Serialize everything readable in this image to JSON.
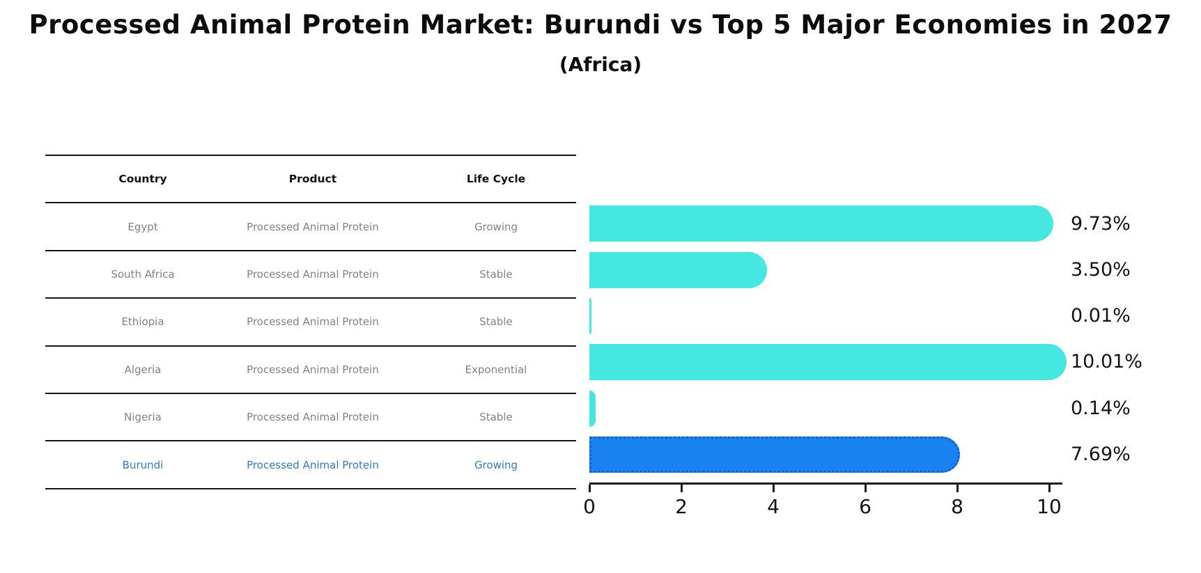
{
  "title": "Processed Animal Protein Market: Burundi vs Top 5 Major Economies in 2027",
  "subtitle": "(Africa)",
  "table": {
    "headers": [
      "Country",
      "Product",
      "Life Cycle"
    ],
    "rows": [
      {
        "country": "Egypt",
        "product": "Processed Animal Protein",
        "life_cycle": "Growing",
        "value_label": "9.73%",
        "highlight": false
      },
      {
        "country": "South Africa",
        "product": "Processed Animal Protein",
        "life_cycle": "Stable",
        "value_label": "3.50%",
        "highlight": false
      },
      {
        "country": "Ethiopia",
        "product": "Processed Animal Protein",
        "life_cycle": "Stable",
        "value_label": "0.01%",
        "highlight": false
      },
      {
        "country": "Algeria",
        "product": "Processed Animal Protein",
        "life_cycle": "Exponential",
        "value_label": "10.01%",
        "highlight": false
      },
      {
        "country": "Nigeria",
        "product": "Processed Animal Protein",
        "life_cycle": "Stable",
        "value_label": "0.14%",
        "highlight": false
      },
      {
        "country": "Burundi",
        "product": "Processed Animal Protein",
        "life_cycle": "Growing",
        "value_label": "7.69%",
        "highlight": true
      }
    ]
  },
  "chart_data": {
    "type": "bar",
    "orientation": "horizontal",
    "title": "Processed Animal Protein Market: Burundi vs Top 5 Major Economies in 2027 (Africa)",
    "categories": [
      "Egypt",
      "South Africa",
      "Ethiopia",
      "Algeria",
      "Nigeria",
      "Burundi"
    ],
    "values": [
      9.73,
      3.5,
      0.01,
      10.01,
      0.14,
      7.69
    ],
    "value_labels": [
      "9.73%",
      "3.50%",
      "0.01%",
      "10.01%",
      "0.14%",
      "7.69%"
    ],
    "xlabel": "",
    "ylabel": "",
    "xlim": [
      0,
      10.3
    ],
    "x_ticks": [
      0,
      2,
      4,
      6,
      8,
      10
    ],
    "grid": false,
    "legend_position": "none",
    "bar_color": "#45e8e0",
    "highlight_color": "#1a82f0",
    "highlight_index": 5,
    "highlight_border_style": "dotted"
  },
  "colors": {
    "background": "#ffffff",
    "bar_cyan": "#45e8e0",
    "bar_blue": "#1a82f0",
    "highlight_text": "#2f7cc0",
    "row_text": "#828282",
    "header_text": "#111111",
    "axis": "#1a1a1a"
  }
}
